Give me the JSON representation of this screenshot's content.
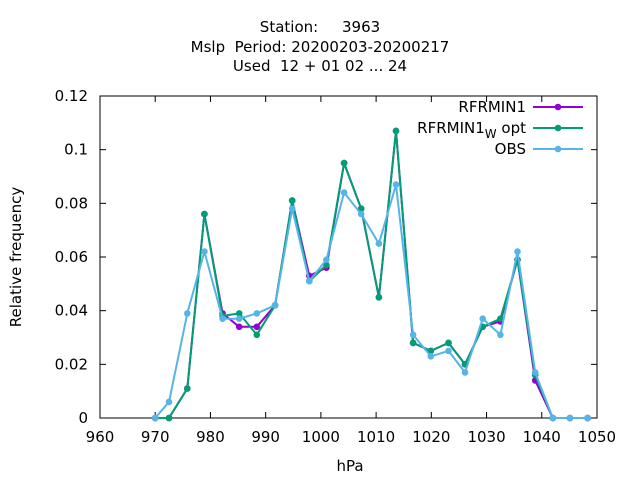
{
  "chart_data": {
    "type": "line",
    "title_lines": [
      "Station:     3963",
      "Mslp  Period: 20200203-20200217",
      "Used  12 + 01 02 ... 24"
    ],
    "xlabel": "hPa",
    "ylabel": "Relative frequency",
    "xlim": [
      960,
      1050
    ],
    "ylim": [
      0,
      0.12
    ],
    "x_ticks": [
      "960",
      "970",
      "980",
      "990",
      "1000",
      "1010",
      "1020",
      "1030",
      "1040",
      "1050"
    ],
    "y_ticks": [
      "0",
      "0.02",
      "0.04",
      "0.06",
      "0.08",
      "0.1",
      "0.12"
    ],
    "grid": false,
    "legend_position": "top-right",
    "x": [
      970,
      972.5,
      975.8,
      978.9,
      982.2,
      985.2,
      988.4,
      991.7,
      994.8,
      997.9,
      1001,
      1004.2,
      1007.3,
      1010.5,
      1013.6,
      1016.7,
      1019.9,
      1023.1,
      1026.1,
      1029.3,
      1032.5,
      1035.6,
      1038.8,
      1042,
      1045.1,
      1048.3
    ],
    "series": [
      {
        "name": "RFRMIN1",
        "color": "#9400d3",
        "values": [
          0,
          0,
          0.011,
          0.076,
          0.039,
          0.034,
          0.034,
          0.042,
          0.081,
          0.053,
          0.056,
          0.095,
          0.078,
          0.045,
          0.107,
          0.028,
          0.025,
          0.028,
          0.02,
          0.034,
          0.036,
          0.059,
          0.014,
          0,
          0,
          0
        ]
      },
      {
        "name_parts": [
          "RFRMIN1",
          "W",
          " opt"
        ],
        "color": "#009e73",
        "values": [
          0,
          0,
          0.011,
          0.076,
          0.038,
          0.039,
          0.031,
          0.042,
          0.081,
          0.051,
          0.057,
          0.095,
          0.078,
          0.045,
          0.107,
          0.028,
          0.025,
          0.028,
          0.02,
          0.034,
          0.037,
          0.059,
          0.016,
          0,
          0,
          0
        ]
      },
      {
        "name": "OBS",
        "color": "#56b4e9",
        "values": [
          0,
          0.006,
          0.039,
          0.062,
          0.037,
          0.037,
          0.039,
          0.042,
          0.078,
          0.051,
          0.059,
          0.084,
          0.076,
          0.065,
          0.087,
          0.031,
          0.023,
          0.025,
          0.017,
          0.037,
          0.031,
          0.062,
          0.017,
          0,
          0,
          0
        ]
      }
    ]
  }
}
